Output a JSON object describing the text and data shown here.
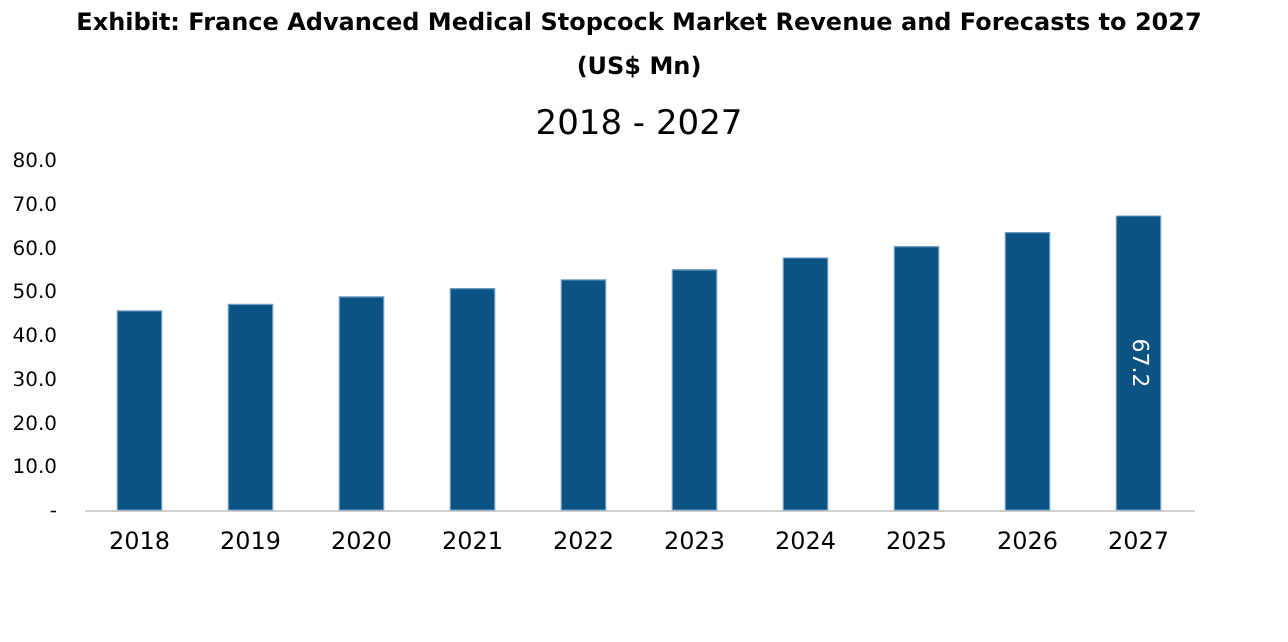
{
  "chart_data": {
    "type": "bar",
    "title": "Exhibit: France Advanced Medical Stopcock Market Revenue and Forecasts to 2027 (US$ Mn)",
    "subtitle": "2018 - 2027",
    "categories": [
      "2018",
      "2019",
      "2020",
      "2021",
      "2022",
      "2023",
      "2024",
      "2025",
      "2026",
      "2027"
    ],
    "values": [
      45.5,
      47.0,
      48.7,
      50.6,
      52.6,
      54.9,
      57.6,
      60.2,
      63.4,
      67.2
    ],
    "value_labels": [
      null,
      null,
      null,
      null,
      null,
      null,
      null,
      null,
      null,
      "67.2"
    ],
    "color": "#0b5383",
    "ylim": [
      0,
      80
    ],
    "yticks": [
      {
        "value": 0,
        "label": "-"
      },
      {
        "value": 10,
        "label": "10.0"
      },
      {
        "value": 20,
        "label": "20.0"
      },
      {
        "value": 30,
        "label": "30.0"
      },
      {
        "value": 40,
        "label": "40.0"
      },
      {
        "value": 50,
        "label": "50.0"
      },
      {
        "value": 60,
        "label": "60.0"
      },
      {
        "value": 70,
        "label": "70.0"
      },
      {
        "value": 80,
        "label": "80.0"
      }
    ],
    "grid": false
  }
}
